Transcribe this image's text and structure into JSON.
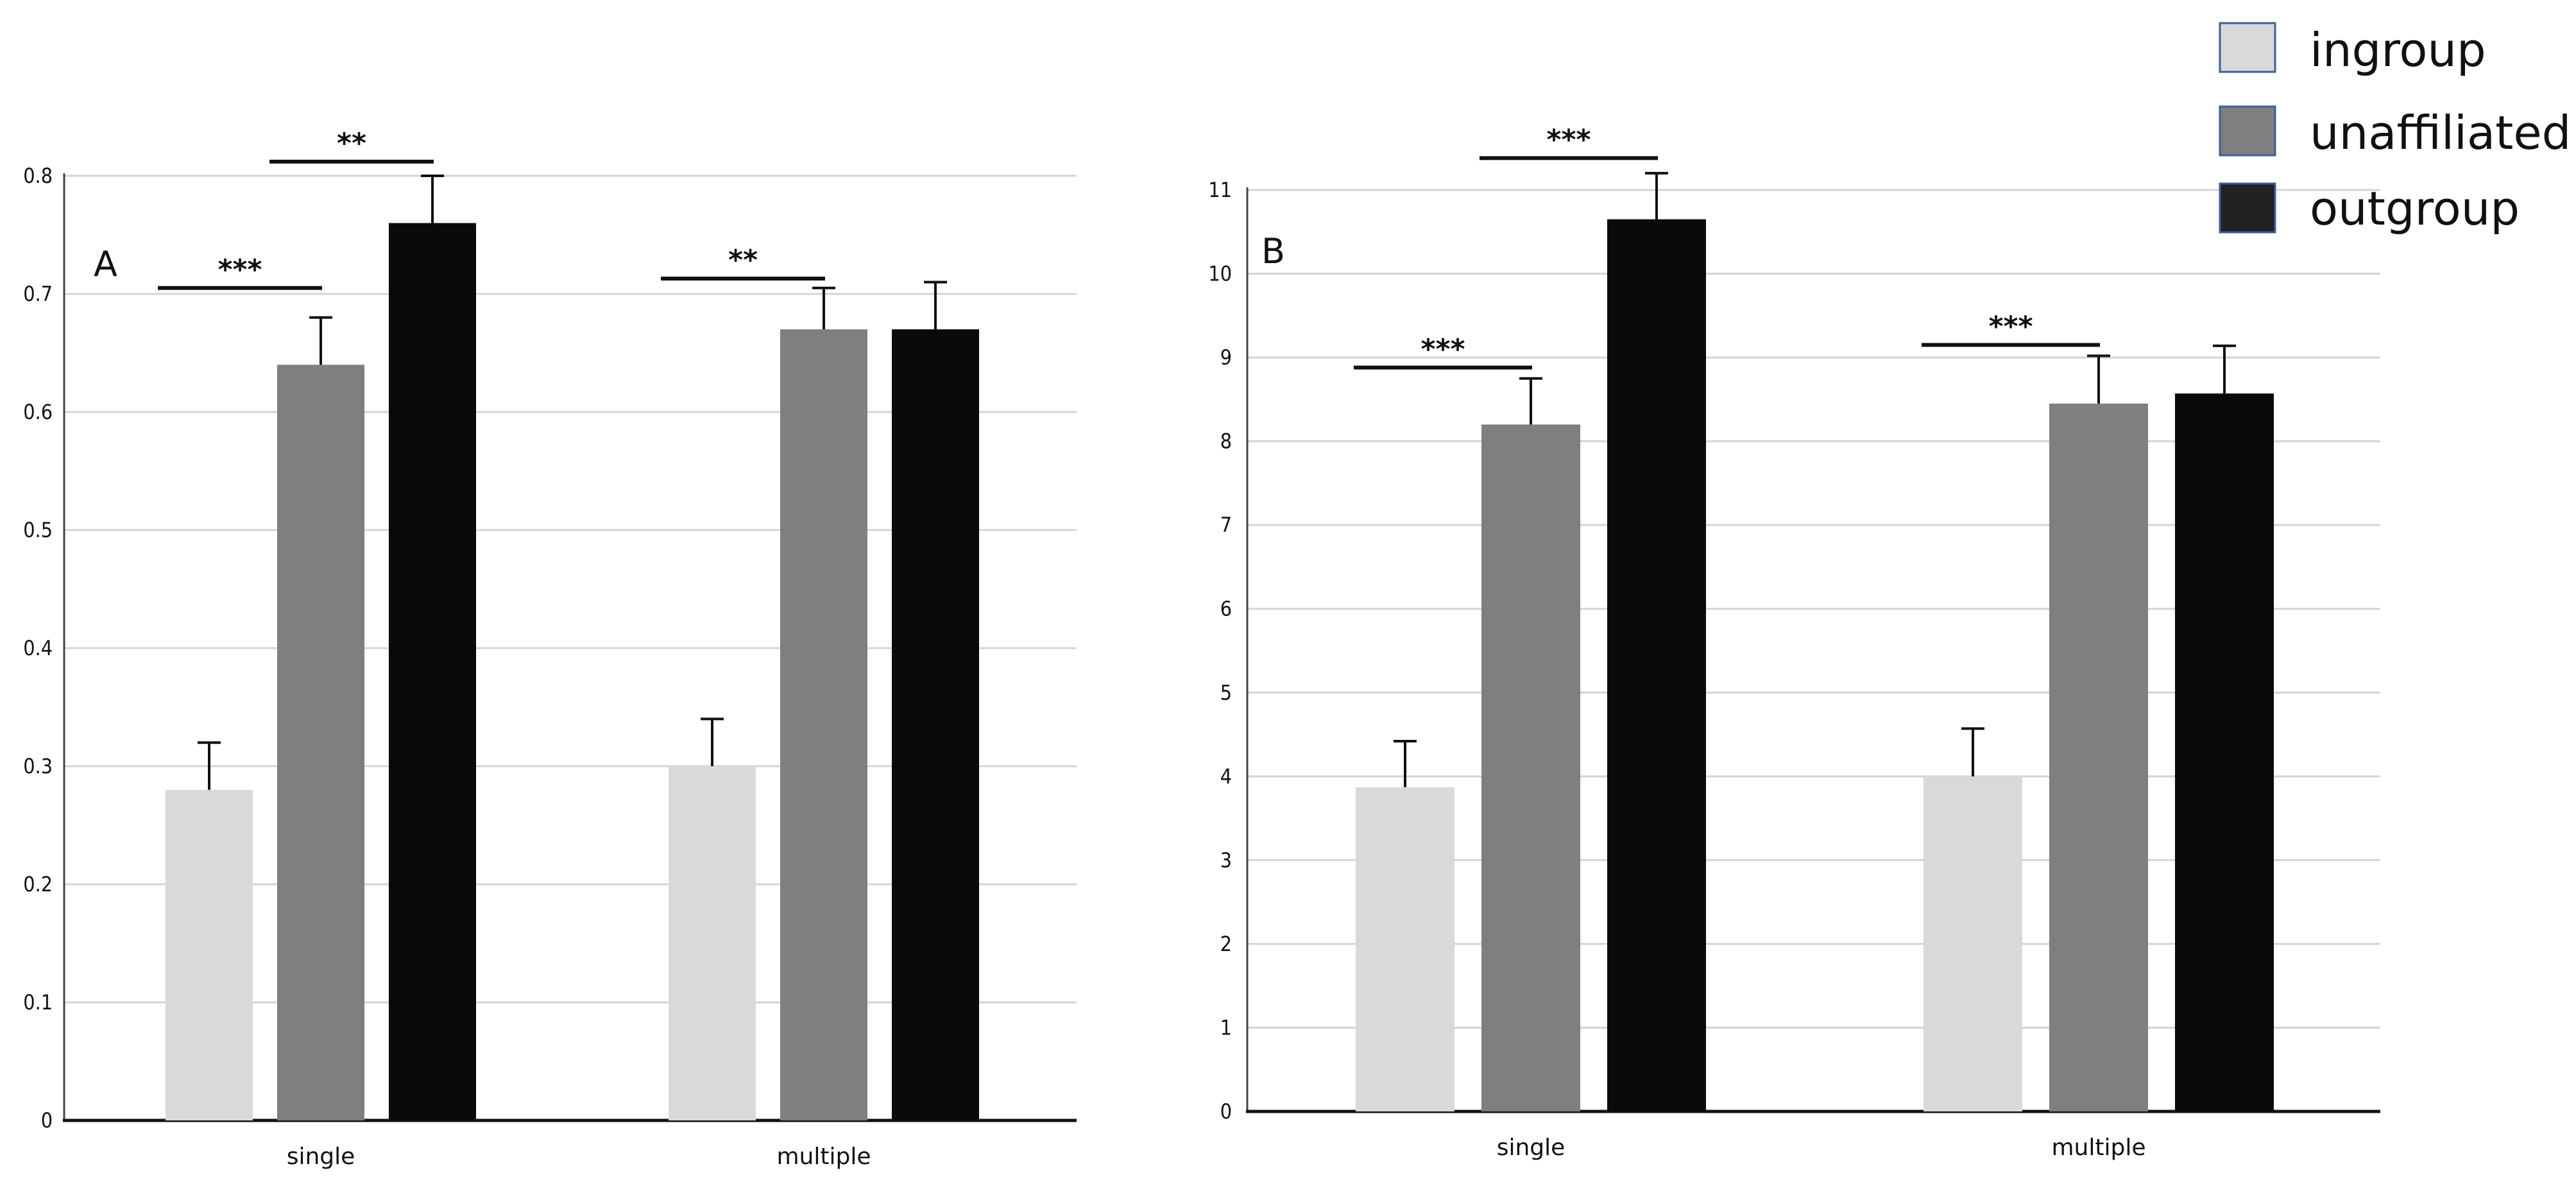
{
  "legend": [
    {
      "label": "ingroup",
      "color": "#d9d9d9"
    },
    {
      "label": "unaffiliated",
      "color": "#7f7f7f"
    },
    {
      "label": "outgroup",
      "color": "#222222"
    }
  ],
  "chart_data": [
    {
      "type": "bar",
      "panel_label": "A",
      "categories": [
        "single",
        "multiple"
      ],
      "ylim": [
        0,
        0.8
      ],
      "yticks": [
        "0",
        "0.1",
        "0.2",
        "0.3",
        "0.4",
        "0.5",
        "0.6",
        "0.7",
        "0.8"
      ],
      "grid": true,
      "series": [
        {
          "name": "ingroup",
          "color": "#d9d9d9",
          "values": [
            0.28,
            0.3
          ],
          "errors": [
            0.04,
            0.04
          ]
        },
        {
          "name": "unaffiliated",
          "color": "#7f7f7f",
          "values": [
            0.64,
            0.67
          ],
          "errors": [
            0.04,
            0.035
          ]
        },
        {
          "name": "outgroup",
          "color": "#0a0a0a",
          "values": [
            0.76,
            0.67
          ],
          "errors": [
            0.04,
            0.04
          ]
        }
      ],
      "significance": [
        {
          "category": 0,
          "from": "ingroup",
          "to": "unaffiliated",
          "label": "***",
          "y": 0.705
        },
        {
          "category": 0,
          "from": "unaffiliated",
          "to": "outgroup",
          "label": "**",
          "y": 0.812
        },
        {
          "category": 1,
          "from": "ingroup",
          "to": "unaffiliated",
          "label": "**",
          "y": 0.713
        }
      ]
    },
    {
      "type": "bar",
      "panel_label": "B",
      "categories": [
        "single",
        "multiple"
      ],
      "ylim": [
        0,
        11
      ],
      "yticks": [
        "0",
        "1",
        "2",
        "3",
        "4",
        "5",
        "6",
        "7",
        "8",
        "9",
        "10",
        "11"
      ],
      "grid": true,
      "series": [
        {
          "name": "ingroup",
          "color": "#d9d9d9",
          "values": [
            3.87,
            4.0
          ],
          "errors": [
            0.55,
            0.57
          ]
        },
        {
          "name": "unaffiliated",
          "color": "#7f7f7f",
          "values": [
            8.2,
            8.45
          ],
          "errors": [
            0.55,
            0.57
          ]
        },
        {
          "name": "outgroup",
          "color": "#0a0a0a",
          "values": [
            10.65,
            8.57
          ],
          "errors": [
            0.55,
            0.57
          ]
        }
      ],
      "significance": [
        {
          "category": 0,
          "from": "ingroup",
          "to": "unaffiliated",
          "label": "***",
          "y": 8.88
        },
        {
          "category": 0,
          "from": "unaffiliated",
          "to": "outgroup",
          "label": "***",
          "y": 11.38
        },
        {
          "category": 1,
          "from": "ingroup",
          "to": "unaffiliated",
          "label": "***",
          "y": 9.15
        }
      ]
    }
  ]
}
